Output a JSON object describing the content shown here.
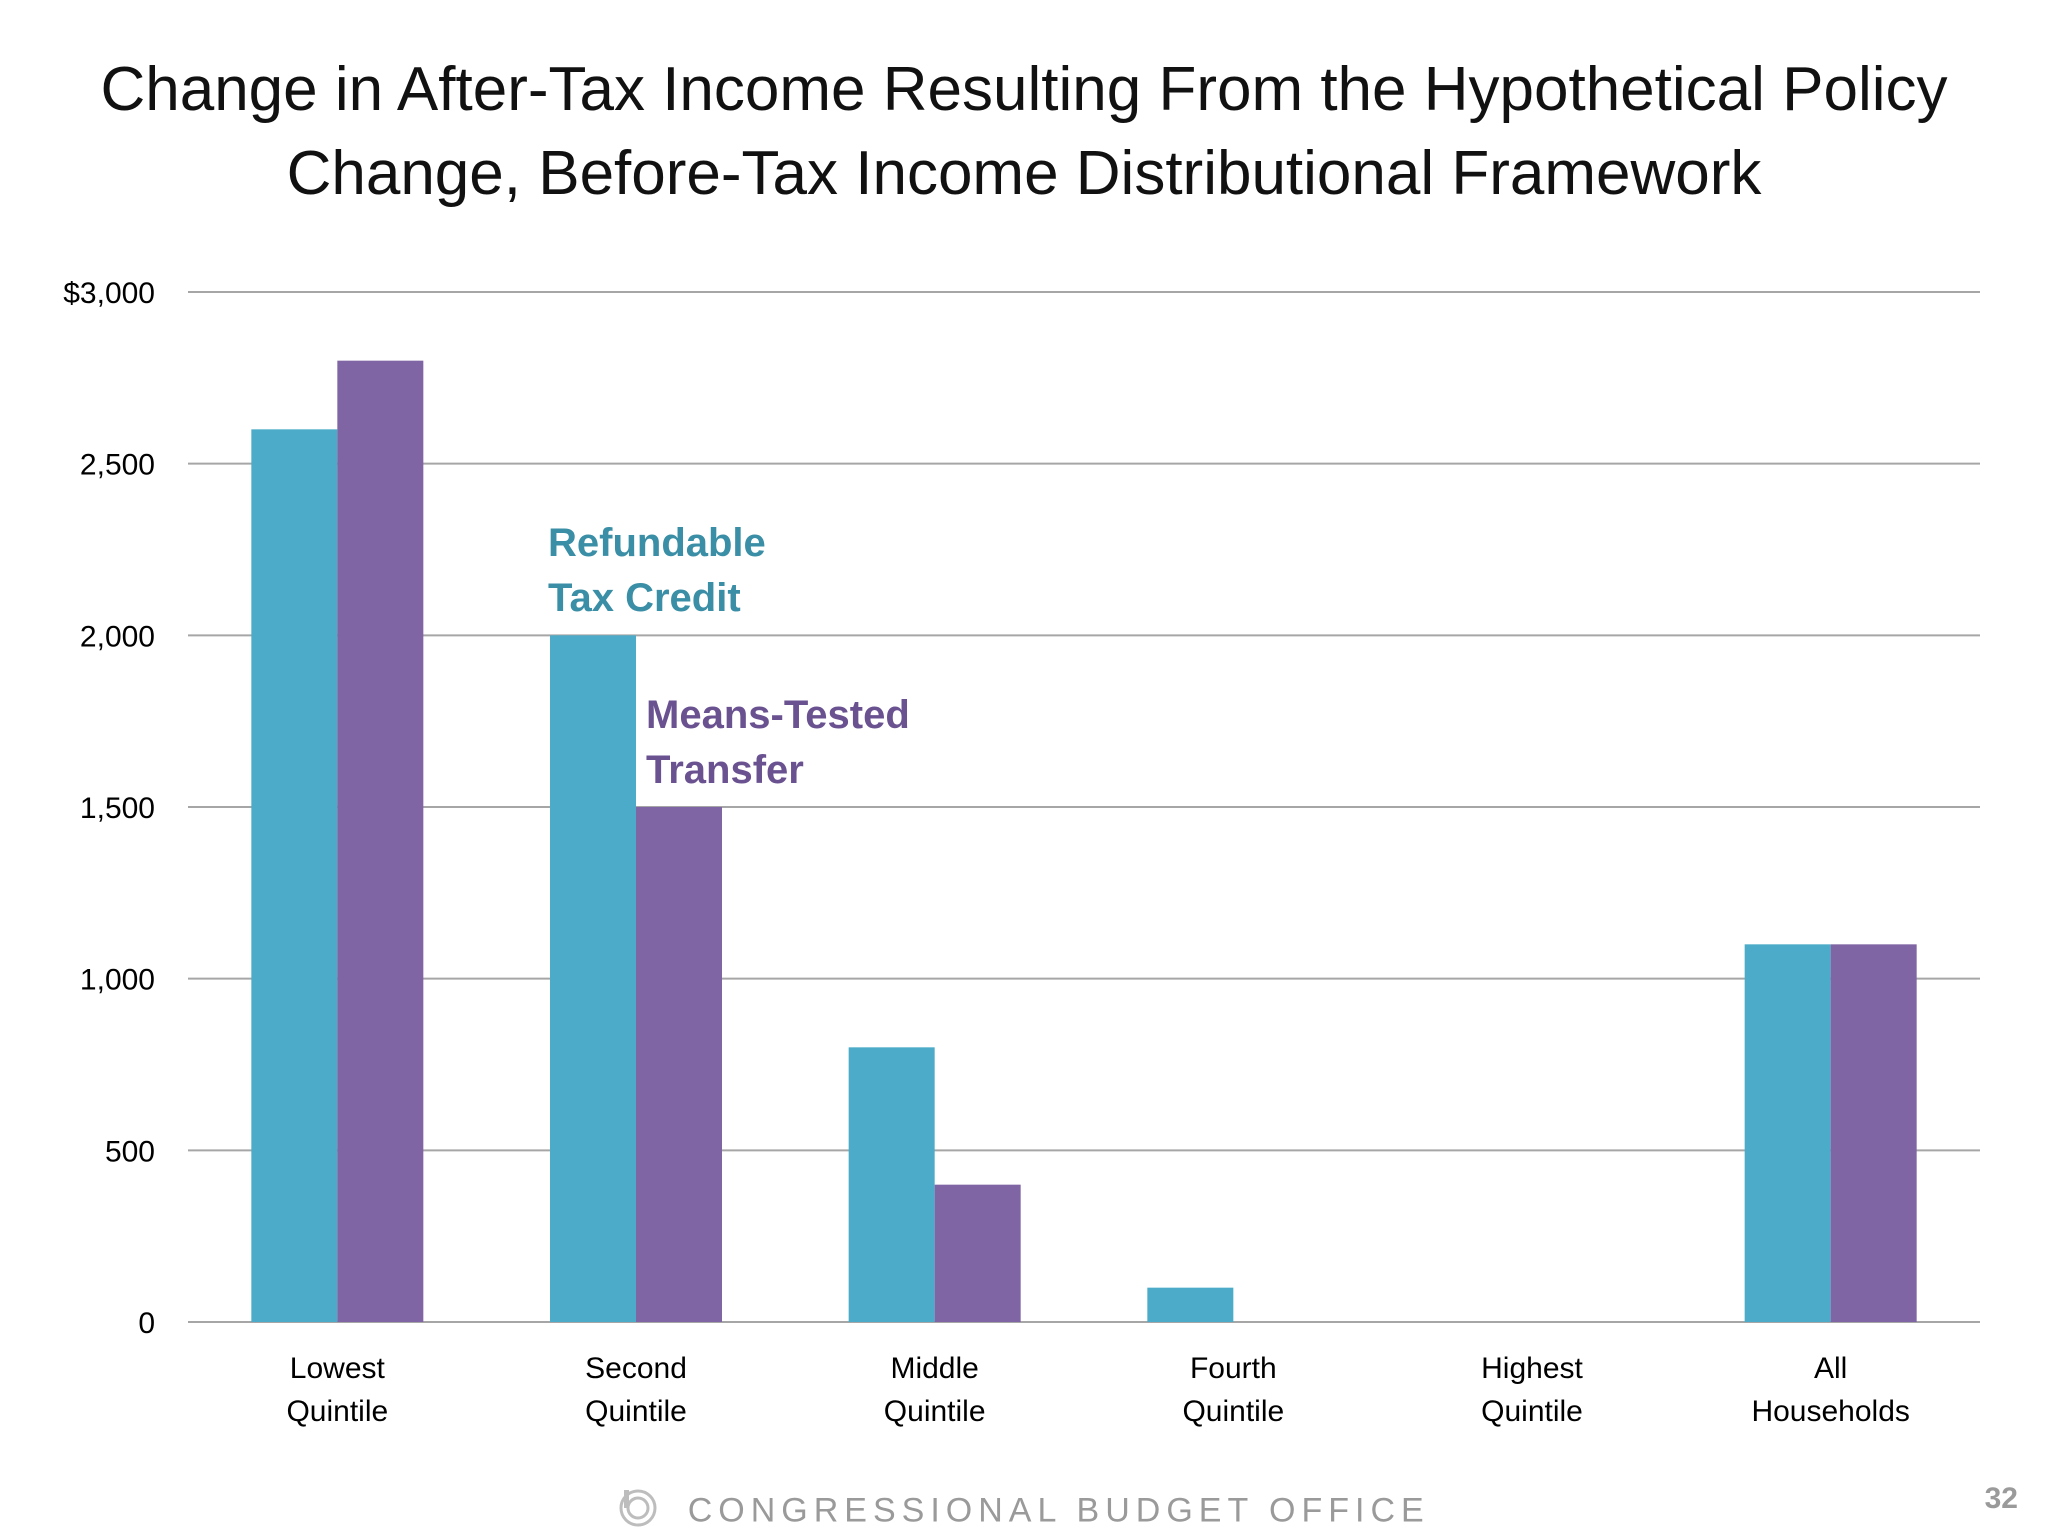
{
  "chart_data": {
    "type": "bar",
    "title_lines": [
      "Change in After-Tax Income Resulting From the Hypothetical Policy",
      "Change, Before-Tax Income Distributional Framework"
    ],
    "categories": [
      [
        "Lowest",
        "Quintile"
      ],
      [
        "Second",
        "Quintile"
      ],
      [
        "Middle",
        "Quintile"
      ],
      [
        "Fourth",
        "Quintile"
      ],
      [
        "Highest",
        "Quintile"
      ],
      [
        "All",
        "Households"
      ]
    ],
    "series": [
      {
        "name": "Refundable Tax Credit",
        "label_lines": [
          "Refundable",
          "Tax Credit"
        ],
        "color": "#4babc8",
        "values": [
          2600,
          2000,
          800,
          100,
          0,
          1100
        ]
      },
      {
        "name": "Means-Tested Transfer",
        "label_lines": [
          "Means-Tested",
          "Transfer"
        ],
        "color": "#7f65a3",
        "values": [
          2800,
          1500,
          400,
          0,
          0,
          1100
        ]
      }
    ],
    "ylim": [
      0,
      3000
    ],
    "yticks": [
      0,
      500,
      1000,
      1500,
      2000,
      2500,
      3000
    ],
    "ytick_labels": [
      "0",
      "500",
      "1,000",
      "1,500",
      "2,000",
      "2,500",
      "$3,000"
    ],
    "grid": true,
    "legend": "inline labels above second category"
  },
  "footer": {
    "org": "CONGRESSIONAL BUDGET OFFICE",
    "page": "32",
    "logo_icon": "cbo-logo-icon"
  }
}
